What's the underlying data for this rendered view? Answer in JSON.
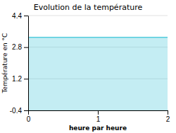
{
  "chart_data": {
    "type": "area",
    "title": "Evolution de la température",
    "xlabel": "heure par heure",
    "ylabel": "Température en °C",
    "x": [
      0,
      2
    ],
    "values": [
      3.3,
      3.3
    ],
    "color": "#55ccdd",
    "xlim": [
      0,
      2
    ],
    "ylim": [
      -0.4,
      4.4
    ],
    "xticks": [
      0,
      1,
      2
    ],
    "yticks": [
      -0.4,
      1.2,
      2.8,
      4.4
    ],
    "grid": true
  }
}
